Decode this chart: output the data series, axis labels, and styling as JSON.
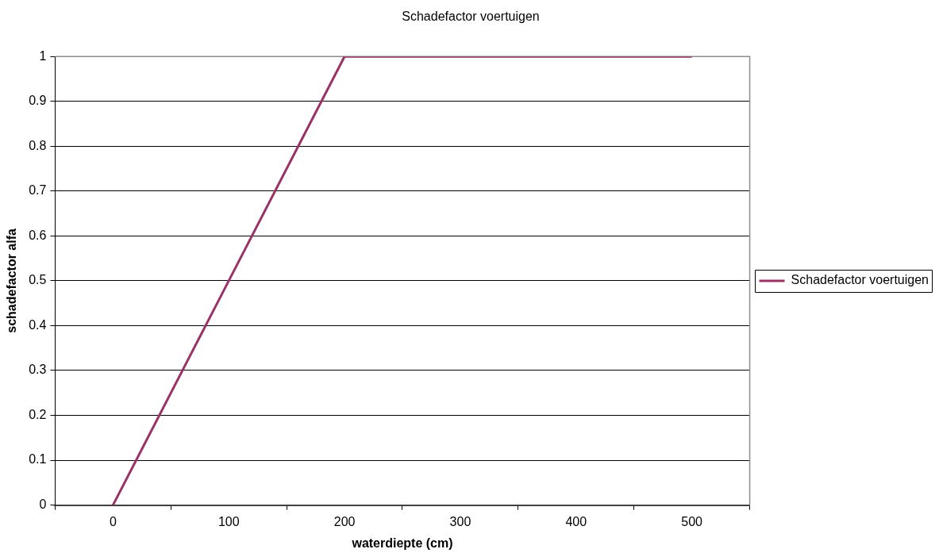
{
  "chart_data": {
    "type": "line",
    "title": "Schadefactor voertuigen",
    "xlabel": "waterdiepte (cm)",
    "ylabel": "schadefactor alfa",
    "categories": [
      "0",
      "100",
      "200",
      "300",
      "400",
      "500"
    ],
    "series": [
      {
        "name": "Schadefactor voertuigen",
        "color": "#993366",
        "values": [
          0,
          0.5,
          1,
          1,
          1,
          1
        ]
      }
    ],
    "ylim": [
      0,
      1
    ],
    "yticks": [
      0,
      0.1,
      0.2,
      0.3,
      0.4,
      0.5,
      0.6,
      0.7,
      0.8,
      0.9,
      1
    ],
    "grid": "y",
    "legend": "right",
    "marker": "none",
    "line_style": "solid"
  }
}
